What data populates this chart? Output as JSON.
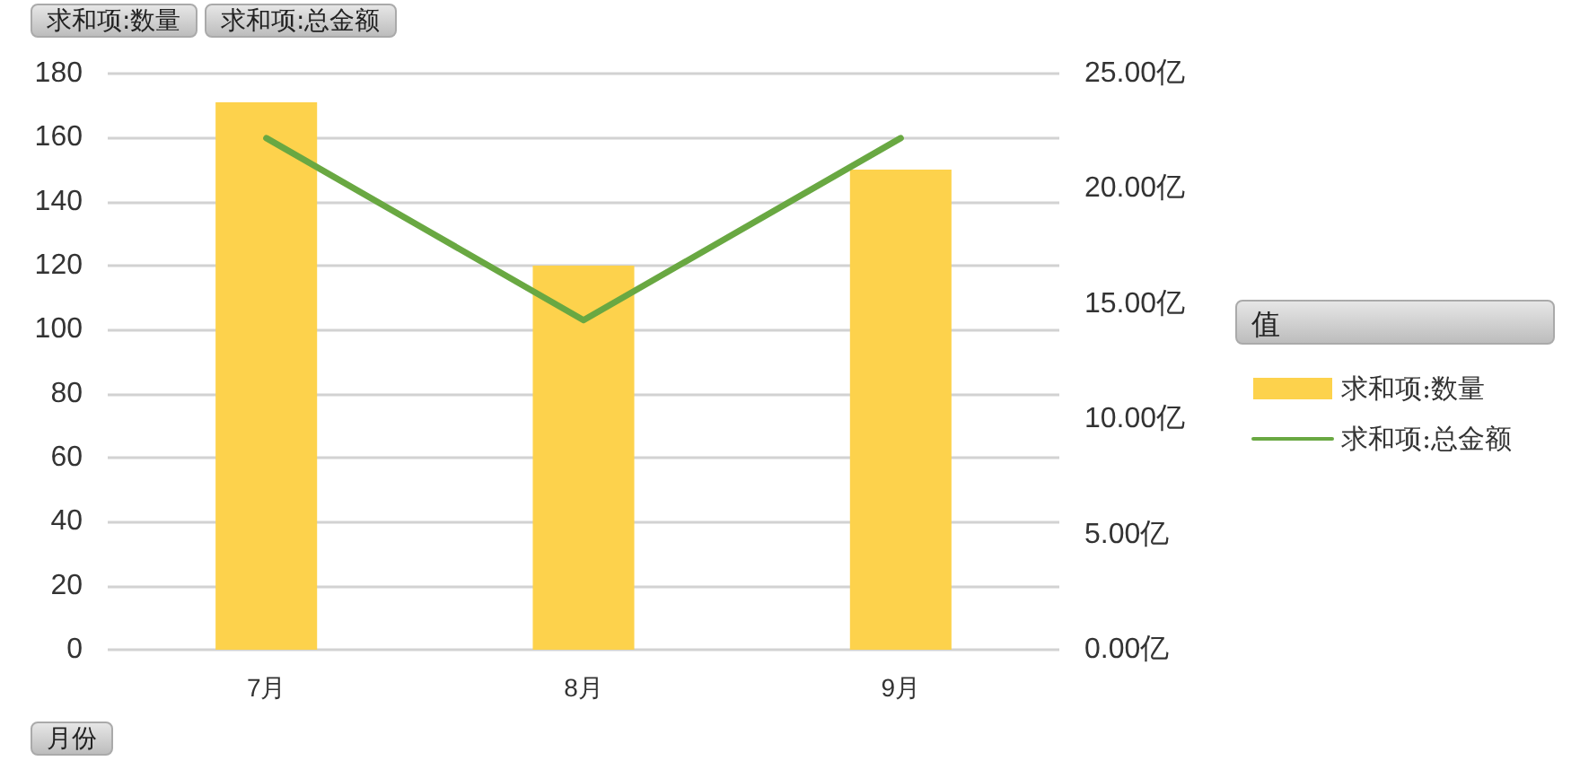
{
  "chart_data": {
    "type": "bar",
    "categories": [
      "7月",
      "8月",
      "9月"
    ],
    "series": [
      {
        "name": "求和项:数量",
        "color": "#fdd24c",
        "values": [
          171,
          120,
          150
        ]
      },
      {
        "name": "求和项:总金额",
        "type": "line",
        "axis": "y2",
        "color": "#69a842",
        "values": [
          22.2,
          14.3,
          22.2
        ]
      }
    ],
    "ylim": [
      0,
      180
    ],
    "yticks": [
      0,
      20,
      40,
      60,
      80,
      100,
      120,
      140,
      160,
      180
    ],
    "y2lim": [
      0,
      25
    ],
    "y2ticks": [
      {
        "value": 0,
        "label": "0.00亿"
      },
      {
        "value": 5,
        "label": "5.00亿"
      },
      {
        "value": 10,
        "label": "10.00亿"
      },
      {
        "value": 15,
        "label": "15.00亿"
      },
      {
        "value": 20,
        "label": "20.00亿"
      },
      {
        "value": 25,
        "label": "25.00亿"
      }
    ],
    "legend_title": "值",
    "legend": "right",
    "grid": "y",
    "annotations": [
      "求和项:数量",
      "求和项:总金额",
      "月份"
    ]
  }
}
